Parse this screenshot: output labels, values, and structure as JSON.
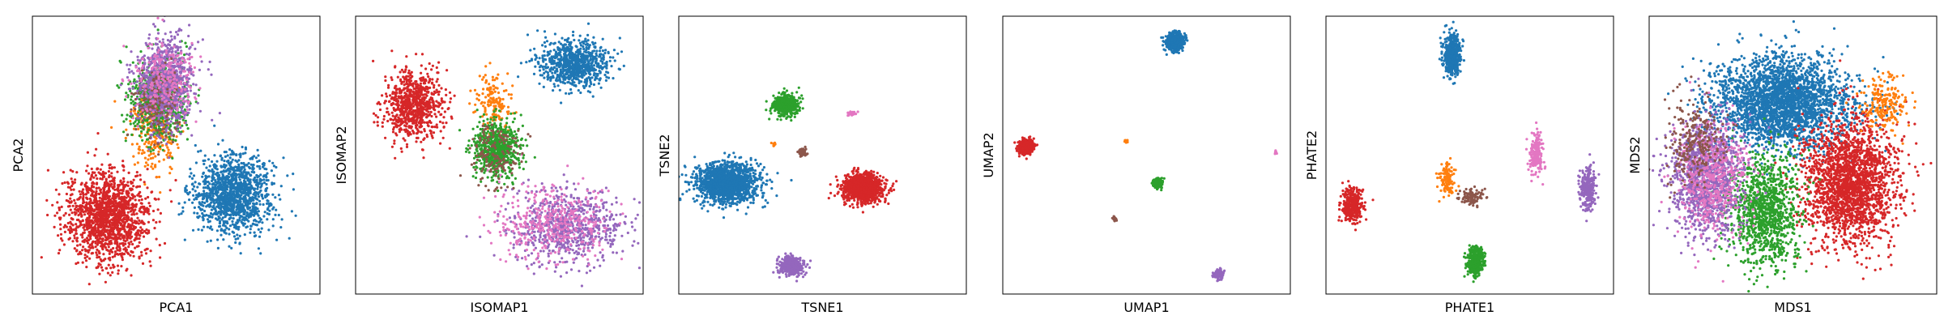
{
  "figure": {
    "point_radius": 1.6,
    "colors": {
      "blue": "#1f77b4",
      "orange": "#ff7f0e",
      "green": "#2ca02c",
      "red": "#d62728",
      "purple": "#9467bd",
      "brown": "#8c564b",
      "pink": "#e377c2"
    }
  },
  "chart_data": [
    {
      "type": "scatter",
      "xlabel": "PCA1",
      "ylabel": "PCA2",
      "xlim": [
        0,
        100
      ],
      "ylim": [
        0,
        100
      ],
      "grid": false,
      "ticks": false,
      "clusters": [
        {
          "color": "red",
          "center": [
            26,
            28
          ],
          "spread": [
            7,
            8
          ],
          "count": 1500
        },
        {
          "color": "blue",
          "center": [
            70,
            36
          ],
          "spread": [
            7,
            7
          ],
          "count": 1300
        },
        {
          "color": "orange",
          "center": [
            43,
            62
          ],
          "spread": [
            4,
            8
          ],
          "count": 350
        },
        {
          "color": "green",
          "center": [
            44,
            70
          ],
          "spread": [
            5,
            7
          ],
          "count": 700
        },
        {
          "color": "purple",
          "center": [
            46,
            76
          ],
          "spread": [
            5,
            8
          ],
          "count": 900
        },
        {
          "color": "brown",
          "center": [
            43,
            68
          ],
          "spread": [
            4,
            6
          ],
          "count": 150
        },
        {
          "color": "pink",
          "center": [
            46,
            78
          ],
          "spread": [
            5,
            6
          ],
          "count": 250
        }
      ]
    },
    {
      "type": "scatter",
      "xlabel": "ISOMAP1",
      "ylabel": "ISOMAP2",
      "xlim": [
        0,
        100
      ],
      "ylim": [
        0,
        100
      ],
      "grid": false,
      "ticks": false,
      "clusters": [
        {
          "color": "red",
          "center": [
            20,
            68
          ],
          "spread": [
            5,
            6
          ],
          "count": 800
        },
        {
          "color": "blue",
          "center": [
            76,
            83
          ],
          "spread": [
            6,
            4
          ],
          "count": 800
        },
        {
          "color": "orange",
          "center": [
            48,
            69
          ],
          "spread": [
            3,
            5
          ],
          "count": 150
        },
        {
          "color": "green",
          "center": [
            49,
            52
          ],
          "spread": [
            4,
            5
          ],
          "count": 700
        },
        {
          "color": "purple",
          "center": [
            75,
            24
          ],
          "spread": [
            10,
            7
          ],
          "count": 700
        },
        {
          "color": "pink",
          "center": [
            68,
            26
          ],
          "spread": [
            10,
            7
          ],
          "count": 400
        },
        {
          "color": "brown",
          "center": [
            49,
            50
          ],
          "spread": [
            4,
            6
          ],
          "count": 150
        }
      ]
    },
    {
      "type": "scatter",
      "xlabel": "TSNE1",
      "ylabel": "TSNE2",
      "xlim": [
        0,
        100
      ],
      "ylim": [
        0,
        100
      ],
      "grid": false,
      "ticks": false,
      "clusters": [
        {
          "color": "blue",
          "center": [
            17,
            40
          ],
          "spread": [
            5.5,
            3.6
          ],
          "count": 1500
        },
        {
          "color": "red",
          "center": [
            64,
            38
          ],
          "spread": [
            3.5,
            2.5
          ],
          "count": 1100
        },
        {
          "color": "green",
          "center": [
            37,
            68
          ],
          "spread": [
            2.2,
            2.0
          ],
          "count": 500
        },
        {
          "color": "purple",
          "center": [
            39,
            10
          ],
          "spread": [
            2.0,
            1.6
          ],
          "count": 450
        },
        {
          "color": "orange",
          "center": [
            33,
            54
          ],
          "spread": [
            0.4,
            0.4
          ],
          "count": 12
        },
        {
          "color": "brown",
          "center": [
            43,
            51
          ],
          "spread": [
            0.8,
            0.8
          ],
          "count": 50
        },
        {
          "color": "pink",
          "center": [
            60,
            65
          ],
          "spread": [
            0.7,
            0.4
          ],
          "count": 30
        }
      ]
    },
    {
      "type": "scatter",
      "xlabel": "UMAP1",
      "ylabel": "UMAP2",
      "xlim": [
        0,
        100
      ],
      "ylim": [
        0,
        100
      ],
      "grid": false,
      "ticks": false,
      "clusters": [
        {
          "color": "blue",
          "center": [
            60,
            91
          ],
          "spread": [
            1.5,
            1.5
          ],
          "count": 600
        },
        {
          "color": "red",
          "center": [
            8,
            53
          ],
          "spread": [
            1.2,
            1.2
          ],
          "count": 500
        },
        {
          "color": "green",
          "center": [
            54,
            40
          ],
          "spread": [
            0.8,
            0.8
          ],
          "count": 200
        },
        {
          "color": "orange",
          "center": [
            43,
            55
          ],
          "spread": [
            0.3,
            0.3
          ],
          "count": 10
        },
        {
          "color": "brown",
          "center": [
            39,
            27
          ],
          "spread": [
            0.4,
            0.4
          ],
          "count": 20
        },
        {
          "color": "purple",
          "center": [
            75,
            7
          ],
          "spread": [
            0.8,
            0.8
          ],
          "count": 150
        },
        {
          "color": "pink",
          "center": [
            95,
            51
          ],
          "spread": [
            0.3,
            0.3
          ],
          "count": 10
        }
      ]
    },
    {
      "type": "scatter",
      "xlabel": "PHATE1",
      "ylabel": "PHATE2",
      "xlim": [
        0,
        100
      ],
      "ylim": [
        0,
        100
      ],
      "grid": false,
      "ticks": false,
      "clusters": [
        {
          "color": "blue",
          "center": [
            44,
            86
          ],
          "spread": [
            1.5,
            3.5
          ],
          "count": 500
        },
        {
          "color": "red",
          "center": [
            9,
            32
          ],
          "spread": [
            1.8,
            3.0
          ],
          "count": 350
        },
        {
          "color": "green",
          "center": [
            52,
            12
          ],
          "spread": [
            1.5,
            2.5
          ],
          "count": 350
        },
        {
          "color": "orange",
          "center": [
            42,
            41
          ],
          "spread": [
            1.4,
            3.0
          ],
          "count": 120
        },
        {
          "color": "brown",
          "center": [
            51,
            35
          ],
          "spread": [
            2.0,
            1.4
          ],
          "count": 100
        },
        {
          "color": "pink",
          "center": [
            73,
            51
          ],
          "spread": [
            1.3,
            4.0
          ],
          "count": 200
        },
        {
          "color": "purple",
          "center": [
            91,
            38
          ],
          "spread": [
            1.3,
            3.5
          ],
          "count": 250
        }
      ]
    },
    {
      "type": "scatter",
      "xlabel": "MDS1",
      "ylabel": "MDS2",
      "xlim": [
        0,
        100
      ],
      "ylim": [
        0,
        100
      ],
      "grid": false,
      "ticks": false,
      "clusters": [
        {
          "color": "blue",
          "center": [
            46,
            69
          ],
          "spread": [
            12,
            8
          ],
          "count": 2800
        },
        {
          "color": "red",
          "center": [
            70,
            40
          ],
          "spread": [
            8,
            11
          ],
          "count": 2200
        },
        {
          "color": "green",
          "center": [
            40,
            30
          ],
          "spread": [
            6,
            10
          ],
          "count": 1100
        },
        {
          "color": "purple",
          "center": [
            20,
            42
          ],
          "spread": [
            6,
            10
          ],
          "count": 1300
        },
        {
          "color": "pink",
          "center": [
            22,
            42
          ],
          "spread": [
            6,
            10
          ],
          "count": 500
        },
        {
          "color": "brown",
          "center": [
            16,
            55
          ],
          "spread": [
            5,
            7
          ],
          "count": 250
        },
        {
          "color": "orange",
          "center": [
            82,
            68
          ],
          "spread": [
            4,
            5
          ],
          "count": 200
        }
      ]
    }
  ]
}
